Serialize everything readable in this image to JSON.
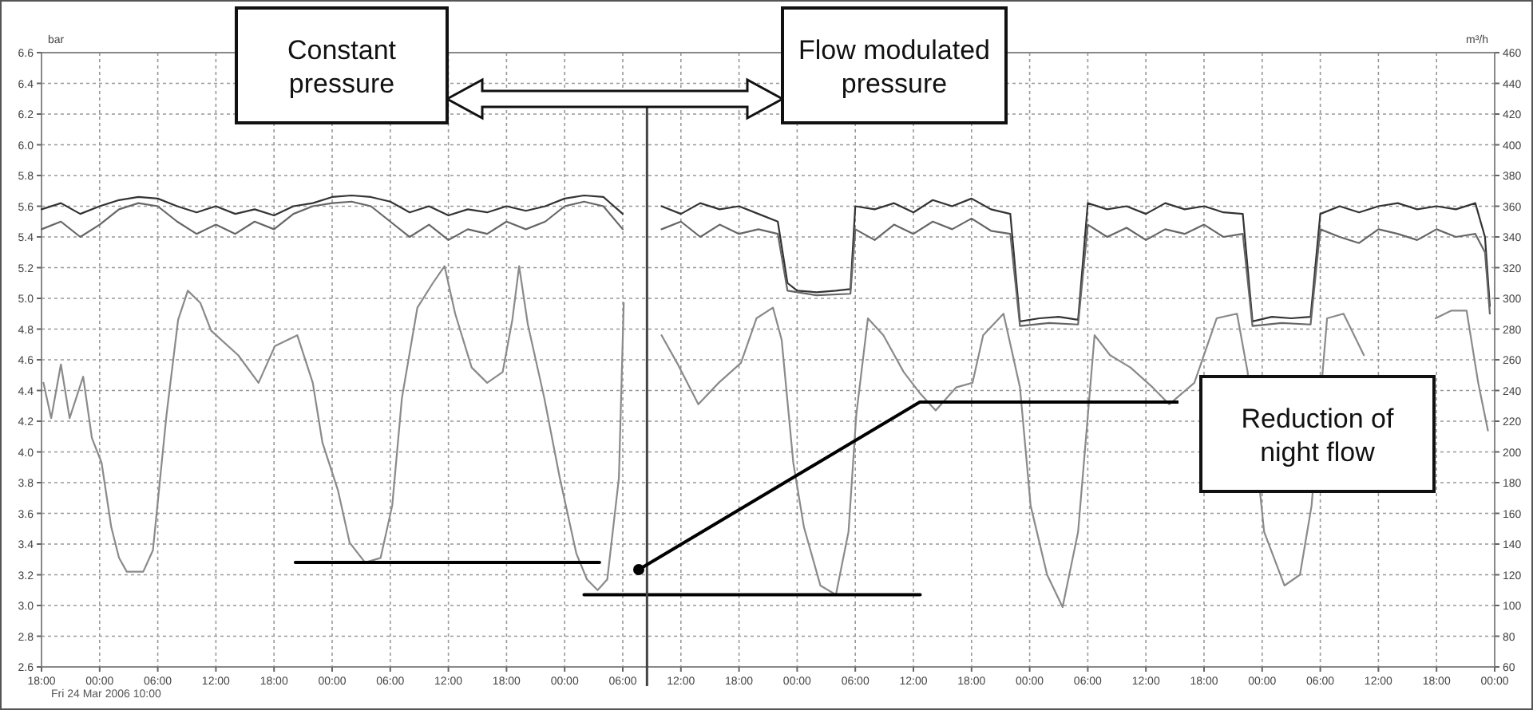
{
  "chart_data": {
    "type": "line",
    "ylabel": "bar",
    "y2label": "m³/h",
    "xlim": [
      "2006-03-24T18:00",
      "2006-03-31T00:00"
    ],
    "xticks": [
      {
        "value": "2006-03-24T18:00",
        "label": "18:00"
      },
      {
        "value": "2006-03-25T00:00",
        "label": "00:00"
      },
      {
        "value": "2006-03-25T06:00",
        "label": "06:00"
      },
      {
        "value": "2006-03-25T12:00",
        "label": "12:00"
      },
      {
        "value": "2006-03-25T18:00",
        "label": "18:00"
      },
      {
        "value": "2006-03-26T00:00",
        "label": "00:00"
      },
      {
        "value": "2006-03-26T06:00",
        "label": "06:00"
      },
      {
        "value": "2006-03-26T12:00",
        "label": "12:00"
      },
      {
        "value": "2006-03-26T18:00",
        "label": "18:00"
      },
      {
        "value": "2006-03-27T00:00",
        "label": "00:00"
      },
      {
        "value": "2006-03-27T06:00",
        "label": "06:00"
      },
      {
        "value": "2006-03-27T12:00",
        "label": "12:00"
      },
      {
        "value": "2006-03-27T18:00",
        "label": "18:00"
      },
      {
        "value": "2006-03-28T00:00",
        "label": "00:00"
      },
      {
        "value": "2006-03-28T06:00",
        "label": "06:00"
      },
      {
        "value": "2006-03-28T12:00",
        "label": "12:00"
      },
      {
        "value": "2006-03-28T18:00",
        "label": "18:00"
      },
      {
        "value": "2006-03-29T00:00",
        "label": "00:00"
      },
      {
        "value": "2006-03-29T06:00",
        "label": "06:00"
      },
      {
        "value": "2006-03-29T12:00",
        "label": "12:00"
      },
      {
        "value": "2006-03-29T18:00",
        "label": "18:00"
      },
      {
        "value": "2006-03-30T00:00",
        "label": "00:00"
      },
      {
        "value": "2006-03-30T06:00",
        "label": "06:00"
      },
      {
        "value": "2006-03-30T12:00",
        "label": "12:00"
      },
      {
        "value": "2006-03-30T18:00",
        "label": "18:00"
      },
      {
        "value": "2006-03-31T00:00",
        "label": "00:00"
      }
    ],
    "ylim": [
      2.6,
      6.6
    ],
    "yticks": [
      2.6,
      2.8,
      {
        "value": 3,
        "label": "3.0"
      },
      3.2,
      3.4,
      3.6,
      3.8,
      {
        "value": 4,
        "label": "4.0"
      },
      4.2,
      4.4,
      4.6,
      4.8,
      {
        "value": 5,
        "label": "5.0"
      },
      5.2,
      5.4,
      5.6,
      5.8,
      {
        "value": 6,
        "label": "6.0"
      },
      6.2,
      6.4,
      6.6
    ],
    "y2lim": [
      60,
      460
    ],
    "y2ticks": [
      60,
      80,
      100,
      120,
      140,
      160,
      180,
      200,
      220,
      240,
      260,
      280,
      300,
      320,
      340,
      360,
      380,
      400,
      420,
      440,
      460
    ],
    "grid": true,
    "series": [
      {
        "color": "#333333",
        "x": [
          "2006-03-24T18:00",
          "2006-03-24T20:00",
          "2006-03-24T22:00",
          "2006-03-25T00:00",
          "2006-03-25T02:00",
          "2006-03-25T04:00",
          "2006-03-25T06:00",
          "2006-03-25T08:00",
          "2006-03-25T10:00",
          "2006-03-25T12:00",
          "2006-03-25T14:00",
          "2006-03-25T16:00",
          "2006-03-25T18:00",
          "2006-03-25T20:00",
          "2006-03-25T22:00",
          "2006-03-26T00:00",
          "2006-03-26T02:00",
          "2006-03-26T04:00",
          "2006-03-26T06:00",
          "2006-03-26T08:00",
          "2006-03-26T10:00",
          "2006-03-26T12:00",
          "2006-03-26T14:00",
          "2006-03-26T16:00",
          "2006-03-26T18:00",
          "2006-03-26T20:00",
          "2006-03-26T22:00",
          "2006-03-27T00:00",
          "2006-03-27T02:00",
          "2006-03-27T04:00",
          "2006-03-27T06:00",
          "2006-03-27T07:00",
          "2006-03-27T10:00",
          "2006-03-27T12:00",
          "2006-03-27T14:00",
          "2006-03-27T16:00",
          "2006-03-27T18:00",
          "2006-03-27T20:00",
          "2006-03-27T22:00",
          "2006-03-27T23:00",
          "2006-03-28T00:00",
          "2006-03-28T02:00",
          "2006-03-28T04:00",
          "2006-03-28T05:30",
          "2006-03-28T06:00",
          "2006-03-28T08:00",
          "2006-03-28T10:00",
          "2006-03-28T12:00",
          "2006-03-28T14:00",
          "2006-03-28T16:00",
          "2006-03-28T18:00",
          "2006-03-28T20:00",
          "2006-03-28T22:00",
          "2006-03-28T23:00",
          "2006-03-29T01:00",
          "2006-03-29T03:00",
          "2006-03-29T05:00",
          "2006-03-29T06:00",
          "2006-03-29T08:00",
          "2006-03-29T10:00",
          "2006-03-29T12:00",
          "2006-03-29T14:00",
          "2006-03-29T16:00",
          "2006-03-29T18:00",
          "2006-03-29T20:00",
          "2006-03-29T22:00",
          "2006-03-29T23:00",
          "2006-03-30T01:00",
          "2006-03-30T03:00",
          "2006-03-30T05:00",
          "2006-03-30T06:00",
          "2006-03-30T08:00",
          "2006-03-30T10:00",
          "2006-03-30T12:00",
          "2006-03-30T14:00",
          "2006-03-30T16:00",
          "2006-03-30T18:00",
          "2006-03-30T20:00",
          "2006-03-30T22:00",
          "2006-03-30T23:00",
          "2006-03-30T23:30"
        ],
        "values": [
          5.58,
          5.62,
          5.55,
          5.6,
          5.64,
          5.66,
          5.65,
          5.6,
          5.56,
          5.6,
          5.55,
          5.58,
          5.54,
          5.6,
          5.62,
          5.66,
          5.67,
          5.66,
          5.63,
          5.56,
          5.6,
          5.54,
          5.58,
          5.56,
          5.6,
          5.57,
          5.6,
          5.65,
          5.67,
          5.66,
          5.55,
          null,
          5.6,
          5.55,
          5.62,
          5.58,
          5.6,
          5.55,
          5.5,
          5.1,
          5.05,
          5.04,
          5.05,
          5.06,
          5.6,
          5.58,
          5.62,
          5.56,
          5.64,
          5.6,
          5.65,
          5.58,
          5.55,
          4.85,
          4.87,
          4.88,
          4.86,
          5.62,
          5.58,
          5.6,
          5.55,
          5.62,
          5.58,
          5.6,
          5.56,
          5.55,
          4.85,
          4.88,
          4.87,
          4.88,
          5.55,
          5.6,
          5.56,
          5.6,
          5.62,
          5.58,
          5.6,
          5.58,
          5.62,
          5.4,
          4.95
        ]
      },
      {
        "color": "#666666",
        "x": [
          "2006-03-24T18:00",
          "2006-03-24T20:00",
          "2006-03-24T22:00",
          "2006-03-25T00:00",
          "2006-03-25T02:00",
          "2006-03-25T04:00",
          "2006-03-25T06:00",
          "2006-03-25T08:00",
          "2006-03-25T10:00",
          "2006-03-25T12:00",
          "2006-03-25T14:00",
          "2006-03-25T16:00",
          "2006-03-25T18:00",
          "2006-03-25T20:00",
          "2006-03-25T22:00",
          "2006-03-26T00:00",
          "2006-03-26T02:00",
          "2006-03-26T04:00",
          "2006-03-26T06:00",
          "2006-03-26T08:00",
          "2006-03-26T10:00",
          "2006-03-26T12:00",
          "2006-03-26T14:00",
          "2006-03-26T16:00",
          "2006-03-26T18:00",
          "2006-03-26T20:00",
          "2006-03-26T22:00",
          "2006-03-27T00:00",
          "2006-03-27T02:00",
          "2006-03-27T04:00",
          "2006-03-27T06:00",
          "2006-03-27T07:00",
          "2006-03-27T10:00",
          "2006-03-27T12:00",
          "2006-03-27T14:00",
          "2006-03-27T16:00",
          "2006-03-27T18:00",
          "2006-03-27T20:00",
          "2006-03-27T22:00",
          "2006-03-27T23:00",
          "2006-03-28T02:00",
          "2006-03-28T05:30",
          "2006-03-28T06:00",
          "2006-03-28T08:00",
          "2006-03-28T10:00",
          "2006-03-28T12:00",
          "2006-03-28T14:00",
          "2006-03-28T16:00",
          "2006-03-28T18:00",
          "2006-03-28T20:00",
          "2006-03-28T22:00",
          "2006-03-28T23:00",
          "2006-03-29T02:00",
          "2006-03-29T05:00",
          "2006-03-29T06:00",
          "2006-03-29T08:00",
          "2006-03-29T10:00",
          "2006-03-29T12:00",
          "2006-03-29T14:00",
          "2006-03-29T16:00",
          "2006-03-29T18:00",
          "2006-03-29T20:00",
          "2006-03-29T22:00",
          "2006-03-29T23:00",
          "2006-03-30T02:00",
          "2006-03-30T05:00",
          "2006-03-30T06:00",
          "2006-03-30T08:00",
          "2006-03-30T10:00",
          "2006-03-30T12:00",
          "2006-03-30T14:00",
          "2006-03-30T16:00",
          "2006-03-30T18:00",
          "2006-03-30T20:00",
          "2006-03-30T22:00",
          "2006-03-30T23:00",
          "2006-03-30T23:30"
        ],
        "values": [
          5.45,
          5.5,
          5.4,
          5.48,
          5.58,
          5.62,
          5.6,
          5.5,
          5.42,
          5.48,
          5.42,
          5.5,
          5.45,
          5.55,
          5.6,
          5.62,
          5.63,
          5.6,
          5.5,
          5.4,
          5.48,
          5.38,
          5.45,
          5.42,
          5.5,
          5.45,
          5.5,
          5.6,
          5.63,
          5.6,
          5.45,
          null,
          5.45,
          5.5,
          5.4,
          5.48,
          5.42,
          5.45,
          5.42,
          5.05,
          5.02,
          5.03,
          5.45,
          5.38,
          5.48,
          5.42,
          5.5,
          5.45,
          5.52,
          5.44,
          5.42,
          4.82,
          4.84,
          4.83,
          5.48,
          5.4,
          5.46,
          5.38,
          5.45,
          5.42,
          5.48,
          5.4,
          5.42,
          4.82,
          4.84,
          4.83,
          5.45,
          5.4,
          5.36,
          5.45,
          5.42,
          5.38,
          5.45,
          5.4,
          5.42,
          5.3,
          4.9
        ]
      },
      {
        "color": "#8a8a8a",
        "axis": "y2",
        "x": [
          "2006-03-24T18:12",
          "2006-03-24T19:00",
          "2006-03-24T20:00",
          "2006-03-24T20:54",
          "2006-03-24T22:18",
          "2006-03-24T23:12",
          "2006-03-25T00:12",
          "2006-03-25T01:12",
          "2006-03-25T02:00",
          "2006-03-25T02:48",
          "2006-03-25T04:30",
          "2006-03-25T05:30",
          "2006-03-25T06:54",
          "2006-03-25T08:06",
          "2006-03-25T09:06",
          "2006-03-25T10:24",
          "2006-03-25T11:30",
          "2006-03-25T14:18",
          "2006-03-25T16:24",
          "2006-03-25T18:06",
          "2006-03-25T20:24",
          "2006-03-25T22:00",
          "2006-03-25T23:00",
          "2006-03-26T00:36",
          "2006-03-26T01:48",
          "2006-03-26T03:24",
          "2006-03-26T05:00",
          "2006-03-26T06:12",
          "2006-03-26T07:12",
          "2006-03-26T08:48",
          "2006-03-26T10:24",
          "2006-03-26T11:36",
          "2006-03-26T12:42",
          "2006-03-26T14:24",
          "2006-03-26T16:00",
          "2006-03-26T17:36",
          "2006-03-26T18:36",
          "2006-03-26T19:18",
          "2006-03-26T20:12",
          "2006-03-26T21:54",
          "2006-03-26T23:30",
          "2006-03-27T01:12",
          "2006-03-27T02:18",
          "2006-03-27T03:24",
          "2006-03-27T04:24",
          "2006-03-27T05:36",
          "2006-03-27T06:06",
          "2006-03-27T07:00",
          "2006-03-27T10:00",
          "2006-03-27T11:36",
          "2006-03-27T13:48",
          "2006-03-27T15:54",
          "2006-03-27T18:12",
          "2006-03-27T19:48",
          "2006-03-27T21:30",
          "2006-03-27T22:24",
          "2006-03-27T23:36",
          "2006-03-28T00:42",
          "2006-03-28T02:24",
          "2006-03-28T04:00",
          "2006-03-28T05:18",
          "2006-03-28T06:06",
          "2006-03-28T07:18",
          "2006-03-28T08:54",
          "2006-03-28T11:00",
          "2006-03-28T12:42",
          "2006-03-28T14:18",
          "2006-03-28T16:24",
          "2006-03-28T18:06",
          "2006-03-28T19:12",
          "2006-03-28T21:18",
          "2006-03-28T23:00",
          "2006-03-29T00:06",
          "2006-03-29T01:48",
          "2006-03-29T03:24",
          "2006-03-29T05:00",
          "2006-03-29T06:42",
          "2006-03-29T08:18",
          "2006-03-29T10:24",
          "2006-03-29T12:42",
          "2006-03-29T14:24",
          "2006-03-29T17:00",
          "2006-03-29T19:18",
          "2006-03-29T21:24",
          "2006-03-29T22:30",
          "2006-03-30T00:12",
          "2006-03-30T02:18",
          "2006-03-30T03:54",
          "2006-03-30T05:06",
          "2006-03-30T06:42",
          "2006-03-30T08:24",
          "2006-03-30T10:30",
          "2006-03-30T14:00",
          "2006-03-30T17:54",
          "2006-03-30T19:30",
          "2006-03-30T21:06",
          "2006-03-30T22:18",
          "2006-03-30T23:18"
        ],
        "values": [
          245,
          222,
          257,
          222,
          249,
          209,
          193,
          151,
          131,
          122,
          122,
          136,
          224,
          286,
          305,
          297,
          279,
          263,
          245,
          269,
          276,
          245,
          206,
          175,
          141,
          128,
          131,
          165,
          235,
          294,
          310,
          321,
          290,
          255,
          245,
          252,
          286,
          321,
          283,
          235,
          183,
          134,
          117,
          110,
          117,
          183,
          297,
          null,
          276,
          258,
          231,
          245,
          258,
          287,
          294,
          273,
          193,
          151,
          113,
          107,
          148,
          224,
          287,
          276,
          252,
          238,
          227,
          242,
          245,
          276,
          290,
          242,
          165,
          120,
          99,
          148,
          276,
          263,
          255,
          242,
          231,
          245,
          287,
          290,
          252,
          148,
          113,
          120,
          165,
          287,
          290,
          263,
          null,
          287,
          292,
          292,
          245,
          214
        ]
      },
      {
        "color": "#000000",
        "axis": "y2",
        "x": [
          "2006-03-25T20:12",
          "2006-03-27T03:36"
        ],
        "values": [
          128,
          128
        ]
      },
      {
        "color": "#000000",
        "axis": "y2",
        "x": [
          "2006-03-27T02:00",
          "2006-03-28T12:42"
        ],
        "values": [
          107,
          107
        ]
      }
    ],
    "ref_lines": [
      {
        "axis": "x",
        "value": "2006-03-27T08:30",
        "color": "#444444"
      }
    ],
    "annotations": [
      "Constant pressure",
      "Flow modulated pressure",
      "Reduction of night flow",
      "Fri 24 Mar 2006 10:00"
    ]
  }
}
